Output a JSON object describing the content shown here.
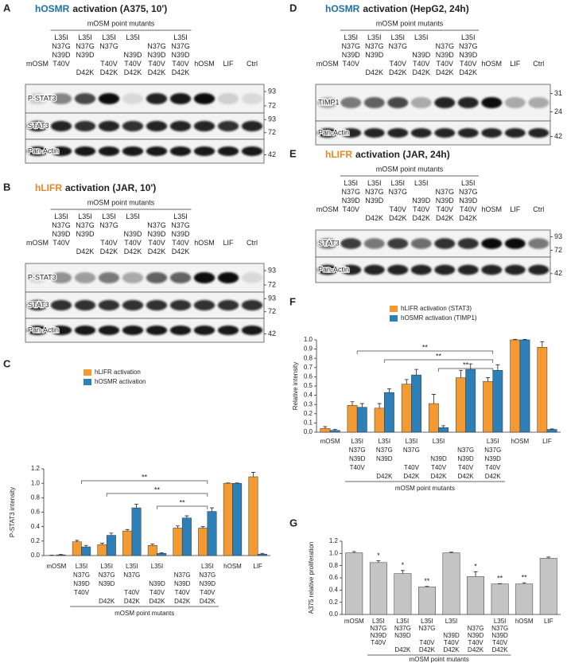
{
  "blots": [
    {
      "label": "A",
      "receptor": "hOSMR",
      "receptor_color": "#1f6fa8",
      "title": "activation (A375, 10')",
      "group_label": "mOSM point mutants",
      "group": [
        1,
        6
      ],
      "lanes": [
        "mOSM",
        "L35I\nN37G\nN39D\nT40V",
        "L35I\nN37G\nN39D\n\nD42K",
        "L35I\nN37G\n\nT40V\nD42K",
        "L35I\n\nN39D\nT40V\nD42K",
        "\nN37G\nN39D\nT40V\nD42K",
        "L35I\nN37G\nN39D\nT40V\nD42K",
        "hOSM",
        "LIF",
        "Ctrl"
      ],
      "rows": [
        {
          "label": "P-STAT3",
          "markers": [
            93,
            72
          ],
          "bands": [
            0.15,
            0.45,
            0.7,
            0.95,
            0.1,
            0.85,
            0.9,
            0.95,
            0.15,
            0.1
          ]
        },
        {
          "label": "STAT3",
          "markers": [
            93,
            72
          ],
          "bands": [
            0.85,
            0.85,
            0.8,
            0.85,
            0.8,
            0.85,
            0.85,
            0.85,
            0.8,
            0.85
          ]
        },
        {
          "label": "Pan-Actin",
          "markers": [
            42
          ],
          "bands": [
            0.9,
            0.9,
            0.9,
            0.9,
            0.9,
            0.9,
            0.9,
            0.9,
            0.9,
            0.9
          ]
        }
      ]
    },
    {
      "label": "B",
      "receptor": "hLIFR",
      "receptor_color": "#e8862a",
      "title": "activation (JAR, 10')",
      "group_label": "mOSM point mutants",
      "group": [
        1,
        6
      ],
      "lanes": [
        "mOSM",
        "L35I\nN37G\nN39D\nT40V",
        "L35I\nN37G\nN39D\n\nD42K",
        "L35I\nN37G\n\nT40V\nD42K",
        "L35I\n\nN39D\nT40V\nD42K",
        "\nN37G\nN39D\nT40V\nD42K",
        "L35I\nN37G\nN39D\nT40V\nD42K",
        "hOSM",
        "LIF",
        "Ctrl"
      ],
      "rows": [
        {
          "label": "P-STAT3",
          "markers": [
            93,
            72
          ],
          "bands": [
            0.1,
            0.4,
            0.35,
            0.5,
            0.3,
            0.6,
            0.6,
            0.95,
            0.95,
            0.1
          ]
        },
        {
          "label": "STAT3",
          "markers": [
            93,
            72
          ],
          "bands": [
            0.8,
            0.8,
            0.8,
            0.8,
            0.8,
            0.8,
            0.8,
            0.8,
            0.8,
            0.8
          ]
        },
        {
          "label": "Pan-Actin",
          "markers": [
            42
          ],
          "bands": [
            0.9,
            0.9,
            0.9,
            0.9,
            0.9,
            0.9,
            0.9,
            0.9,
            0.9,
            0.9
          ]
        }
      ]
    },
    {
      "label": "D",
      "receptor": "hOSMR",
      "receptor_color": "#1f6fa8",
      "title": "activation (HepG2, 24h)",
      "group_label": "mOSM point mutants",
      "group": [
        1,
        6
      ],
      "lanes": [
        "mOSM",
        "L35I\nN37G\nN39D\nT40V",
        "L35I\nN37G\nN39D\n\nD42K",
        "L35I\nN37G\n\nT40V\nD42K",
        "L35I\n\nN39D\nT40V\nD42K",
        "\nN37G\nN39D\nT40V\nD42K",
        "L35I\nN37G\nN39D\nT40V\nD42K",
        "hOSM",
        "LIF",
        "Ctrl"
      ],
      "rows": [
        {
          "label": "TIMP1",
          "markers": [
            31,
            24
          ],
          "bands": [
            0.3,
            0.5,
            0.6,
            0.7,
            0.3,
            0.85,
            0.85,
            0.95,
            0.3,
            0.3
          ]
        },
        {
          "label": "Pan-Actin",
          "markers": [
            42
          ],
          "bands": [
            0.85,
            0.85,
            0.85,
            0.85,
            0.85,
            0.85,
            0.85,
            0.85,
            0.85,
            0.85
          ]
        }
      ]
    },
    {
      "label": "E",
      "receptor": "hLIFR",
      "receptor_color": "#e8862a",
      "title": "activation (JAR, 24h)",
      "group_label": "mOSM point mutants",
      "group": [
        1,
        6
      ],
      "lanes": [
        "mOSM",
        "L35I\nN37G\nN39D\nT40V",
        "L35I\nN37G\nN39D\n\nD42K",
        "L35I\nN37G\n\nT40V\nD42K",
        "L35I\n\nN39D\nT40V\nD42K",
        "\nN37G\nN39D\nT40V\nD42K",
        "L35I\nN37G\nN39D\nT40V\nD42K",
        "hOSM",
        "LIF",
        "Ctrl"
      ],
      "rows": [
        {
          "label": "STAT3",
          "markers": [
            93,
            72
          ],
          "bands": [
            0.5,
            0.75,
            0.5,
            0.75,
            0.55,
            0.8,
            0.8,
            0.95,
            0.95,
            0.5
          ]
        },
        {
          "label": "Pan-Actin",
          "markers": [
            42
          ],
          "bands": [
            0.85,
            0.85,
            0.85,
            0.85,
            0.85,
            0.85,
            0.85,
            0.85,
            0.85,
            0.85
          ]
        }
      ]
    }
  ],
  "chart_data": [
    {
      "type": "bar",
      "label": "C",
      "ylabel": "P-STAT3 intensity",
      "categories": [
        "mOSM",
        "L35I\nN37G\nN39D\nT40V",
        "L35I\nN37G\nN39D\n\nD42K",
        "L35I\nN37G\n\nT40V\nD42K",
        "L35I\n\nN39D\nT40V\nD42K",
        "\nN37G\nN39D\nT40V\nD42K",
        "L35I\nN37G\nN39D\nT40V\nD42K",
        "hOSM",
        "LIF"
      ],
      "series": [
        {
          "name": "hLIFR activation",
          "color": "#f39a32",
          "values": [
            0.0,
            0.19,
            0.15,
            0.34,
            0.14,
            0.38,
            0.38,
            1.0,
            1.09
          ],
          "errors": [
            0.005,
            0.02,
            0.02,
            0.02,
            0.02,
            0.03,
            0.02,
            0.005,
            0.06
          ]
        },
        {
          "name": "hOSMR activation",
          "color": "#2d7fb8",
          "values": [
            0.01,
            0.12,
            0.28,
            0.66,
            0.03,
            0.52,
            0.61,
            1.0,
            0.02
          ],
          "errors": [
            0.005,
            0.02,
            0.03,
            0.05,
            0.01,
            0.03,
            0.05,
            0.005,
            0.01
          ]
        }
      ],
      "ylim": [
        0,
        1.2
      ],
      "yticks": [
        {
          "value": 0,
          "label": "0.0"
        },
        {
          "value": 0.2,
          "label": "0.2"
        },
        {
          "value": 0.4,
          "label": "0.4"
        },
        {
          "value": 0.6,
          "label": "0.6"
        },
        {
          "value": 0.8,
          "label": "0.8"
        },
        {
          "value": 1.0,
          "label": "1.0"
        },
        {
          "value": 1.2,
          "label": "1.2"
        }
      ],
      "group_label": "mOSM point mutants",
      "group": [
        1,
        6
      ],
      "brackets": [
        {
          "text": "**",
          "from": 1,
          "to": 6
        },
        {
          "text": "**",
          "from": 2,
          "to": 6
        },
        {
          "text": "**",
          "from": 4,
          "to": 6
        }
      ]
    },
    {
      "type": "bar",
      "label": "F",
      "ylabel": "Relative intensity",
      "categories": [
        "mOSM",
        "L35I\nN37G\nN39D\nT40V",
        "L35I\nN37G\nN39D\n\nD42K",
        "L35I\nN37G\n\nT40V\nD42K",
        "L35I\n\nN39D\nT40V\nD42K",
        "\nN37G\nN39D\nT40V\nD42K",
        "L35I\nN37G\nN39D\nT40V\nD42K",
        "hOSM",
        "LIF"
      ],
      "series": [
        {
          "name": "hLIFR activation (STAT3)",
          "color": "#f39a32",
          "values": [
            0.04,
            0.29,
            0.26,
            0.52,
            0.31,
            0.59,
            0.55,
            1.0,
            0.92
          ],
          "errors": [
            0.02,
            0.04,
            0.05,
            0.05,
            0.1,
            0.08,
            0.04,
            0.005,
            0.06
          ]
        },
        {
          "name": "hOSMR activation (TIMP1)",
          "color": "#2d7fb8",
          "values": [
            0.02,
            0.27,
            0.43,
            0.62,
            0.05,
            0.68,
            0.67,
            1.0,
            0.03
          ],
          "errors": [
            0.01,
            0.04,
            0.04,
            0.06,
            0.02,
            0.06,
            0.06,
            0.005,
            0.005
          ]
        }
      ],
      "ylim": [
        0,
        1.0
      ],
      "yticks": [
        {
          "value": 0,
          "label": "0.0"
        },
        {
          "value": 0.1,
          "label": "0.1"
        },
        {
          "value": 0.2,
          "label": "0.2"
        },
        {
          "value": 0.3,
          "label": "0.3"
        },
        {
          "value": 0.4,
          "label": "0.4"
        },
        {
          "value": 0.5,
          "label": "0.5"
        },
        {
          "value": 0.6,
          "label": "0.6"
        },
        {
          "value": 0.7,
          "label": "0.7"
        },
        {
          "value": 0.8,
          "label": "0.8"
        },
        {
          "value": 0.9,
          "label": "0.9"
        },
        {
          "value": 1.0,
          "label": "1.0"
        }
      ],
      "group_label": "mOSM point mutants",
      "group": [
        1,
        6
      ],
      "brackets": [
        {
          "text": "**",
          "from": 1,
          "to": 6
        },
        {
          "text": "**",
          "from": 2,
          "to": 6
        },
        {
          "text": "**",
          "from": 4,
          "to": 6
        }
      ]
    },
    {
      "type": "bar",
      "label": "G",
      "ylabel": "A375 relative proliferation",
      "categories": [
        "mOSM",
        "L35I\nN37G\nN39D\nT40V",
        "L35I\nN37G\nN39D\n\nD42K",
        "L35I\nN37G\n\nT40V\nD42K",
        "L35I\n\nN39D\nT40V\nD42K",
        "\nN37G\nN39D\nT40V\nD42K",
        "L35I\nN37G\nN39D\nT40V\nD42K",
        "hOSM",
        "LIF"
      ],
      "series": [
        {
          "color": "#c4c4c4",
          "values": [
            1.01,
            0.85,
            0.67,
            0.45,
            1.01,
            0.62,
            0.5,
            0.5,
            0.92
          ],
          "errors": [
            0.02,
            0.03,
            0.05,
            0.01,
            0.01,
            0.08,
            0.005,
            0.02,
            0.02
          ]
        }
      ],
      "significance": [
        null,
        "*",
        "*",
        "**",
        null,
        "*",
        "**",
        "**",
        null
      ],
      "ylim": [
        0,
        1.2
      ],
      "yticks": [
        {
          "value": 0,
          "label": "0.0"
        },
        {
          "value": 0.2,
          "label": "0.2"
        },
        {
          "value": 0.4,
          "label": "0.4"
        },
        {
          "value": 0.6,
          "label": "0.6"
        },
        {
          "value": 0.8,
          "label": "0.8"
        },
        {
          "value": 1.0,
          "label": "1.0"
        },
        {
          "value": 1.2,
          "label": "1.2"
        }
      ],
      "group_label": "mOSM point mutants",
      "group": [
        1,
        6
      ]
    }
  ]
}
